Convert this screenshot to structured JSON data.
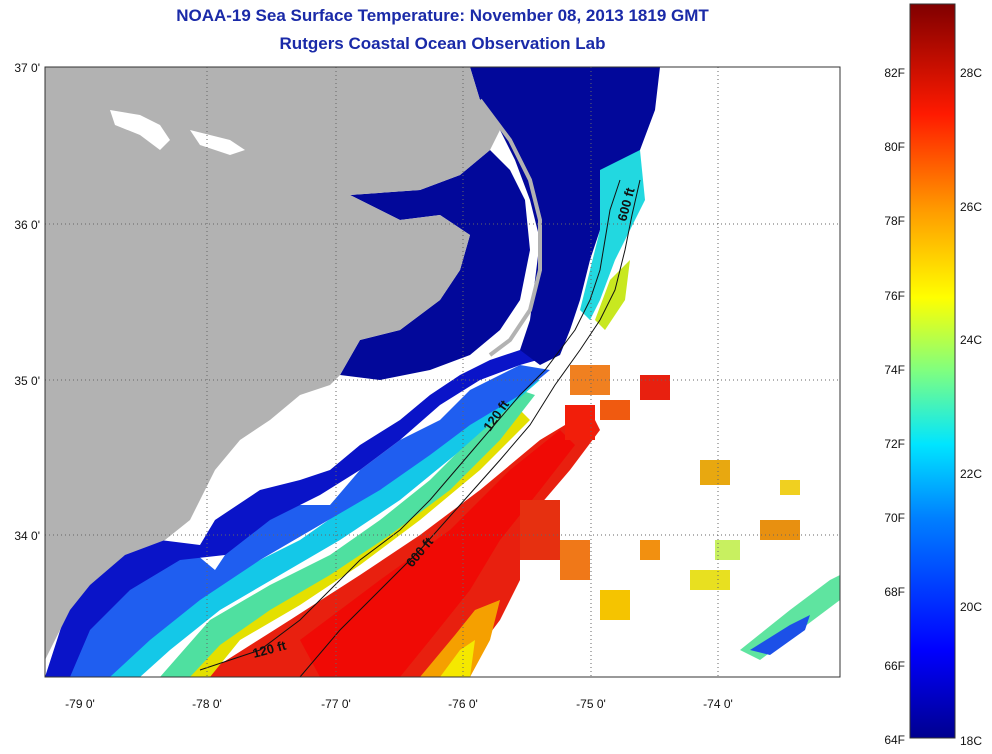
{
  "title_line1": "NOAA-19 Sea Surface Temperature:  November 08, 2013 1819 GMT",
  "title_line2": "Rutgers Coastal Ocean Observation Lab",
  "lat_labels": [
    "37 0'",
    "36 0'",
    "35 0'",
    "34 0'"
  ],
  "lon_labels": [
    "-79 0'",
    "-78 0'",
    "-77 0'",
    "-76 0'",
    "-75 0'",
    "-74 0'"
  ],
  "contour_labels": [
    "600 ft",
    "120 ft",
    "600 ft",
    "120 ft"
  ],
  "colorbar": {
    "fahrenheit_labels": [
      "82F",
      "80F",
      "78F",
      "76F",
      "74F",
      "72F",
      "70F",
      "68F",
      "66F",
      "64F"
    ],
    "celsius_labels": [
      "28C",
      "26C",
      "24C",
      "22C",
      "20C",
      "18C"
    ]
  },
  "colors": {
    "land": "#b2b2b2",
    "title": "#1a2aa8",
    "cold": "#00008f",
    "warm": "#e41a0e"
  }
}
